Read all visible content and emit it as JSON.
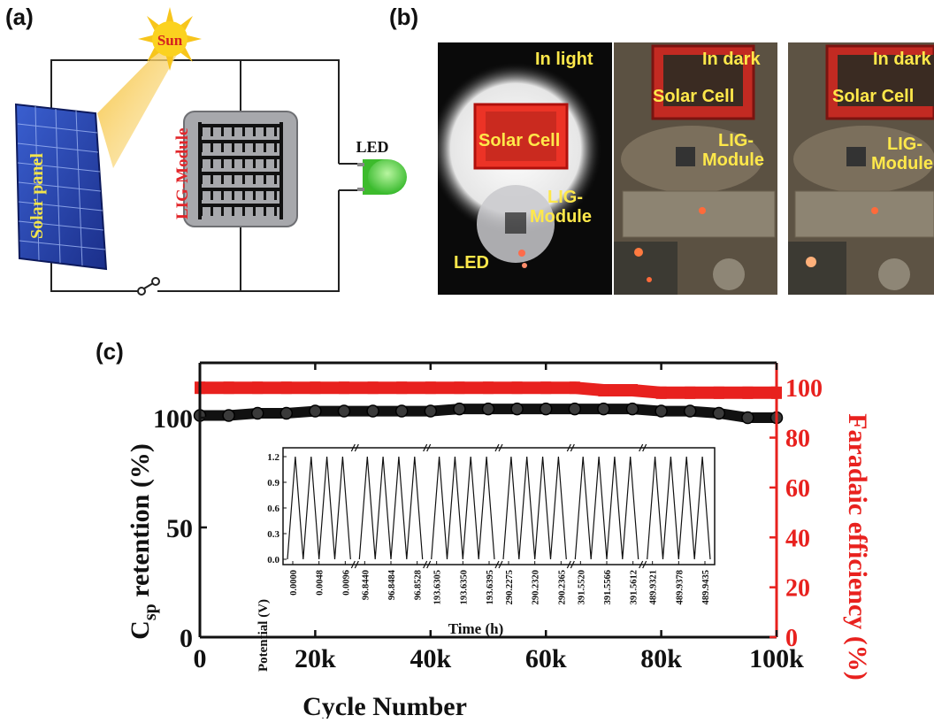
{
  "panel_labels": {
    "a": "(a)",
    "b": "(b)",
    "c": "(c)"
  },
  "schematic": {
    "sun": "Sun",
    "solar_panel": "Solar panel",
    "module": "LIG-Module",
    "led": "LED"
  },
  "photos": {
    "light": {
      "state": "In light",
      "solar": "Solar Cell",
      "module_l1": "LIG-",
      "module_l2": "Module",
      "led": "LED"
    },
    "dark1": {
      "state": "In dark",
      "solar": "Solar Cell",
      "module_l1": "LIG-",
      "module_l2": "Module"
    },
    "dark2": {
      "state": "In dark",
      "solar": "Solar Cell",
      "module_l1": "LIG-",
      "module_l2": "Module"
    }
  },
  "colors": {
    "retention": "#111111",
    "efficiency": "#e8211e",
    "schematic_red": "#e2262a",
    "led_green": "#4fd13b"
  },
  "chart_data": [
    {
      "type": "scatter",
      "xlabel": "Cycle Number",
      "ylabel_main": "C",
      "ylabel_sub": "sp",
      "ylabel_rest": " retention (%)",
      "y2label": "Faradaic efficiency (%)",
      "xlim": [
        0,
        100000
      ],
      "ylim": [
        0,
        125
      ],
      "y2lim": [
        0,
        110
      ],
      "xticks": [
        0,
        20000,
        40000,
        60000,
        80000,
        100000
      ],
      "xtick_labels": [
        "0",
        "20k",
        "40k",
        "60k",
        "80k",
        "100k"
      ],
      "yticks": [
        0,
        50,
        100
      ],
      "ytick_labels": [
        "0",
        "50",
        "100"
      ],
      "y2ticks": [
        0,
        20,
        40,
        60,
        80,
        100
      ],
      "y2tick_labels": [
        "0",
        "20",
        "40",
        "60",
        "80",
        "100"
      ],
      "series": [
        {
          "role": "retention",
          "axis": "left",
          "x": [
            0,
            5000,
            10000,
            15000,
            20000,
            25000,
            30000,
            35000,
            40000,
            45000,
            50000,
            55000,
            60000,
            65000,
            70000,
            75000,
            80000,
            85000,
            90000,
            95000,
            100000
          ],
          "y": [
            101,
            101,
            102,
            102,
            103,
            103,
            103,
            103,
            103,
            104,
            104,
            104,
            104,
            104,
            104,
            104,
            103,
            103,
            102,
            100,
            100
          ]
        },
        {
          "role": "efficiency",
          "axis": "right",
          "x": [
            0,
            5000,
            10000,
            15000,
            20000,
            25000,
            30000,
            35000,
            40000,
            45000,
            50000,
            55000,
            60000,
            65000,
            70000,
            75000,
            80000,
            85000,
            90000,
            95000,
            100000
          ],
          "y": [
            100,
            100,
            100,
            100,
            100,
            100,
            100,
            100,
            100,
            100,
            100,
            100,
            100,
            100,
            99,
            99,
            98,
            98,
            98,
            98,
            98
          ]
        }
      ]
    },
    {
      "type": "line",
      "xlabel": "Time (h)",
      "ylabel": "Potential (V)",
      "ylim": [
        0,
        1.2
      ],
      "yticks": [
        0.0,
        0.3,
        0.6,
        0.9,
        1.2
      ],
      "ytick_labels": [
        "0.0",
        "0.3",
        "0.6",
        "0.9",
        "1.2"
      ],
      "peak_v": 1.2,
      "cycles_per_segment": 4,
      "segments": [
        {
          "tick_labels": [
            "0.0000",
            "0.0048",
            "0.0096"
          ]
        },
        {
          "tick_labels": [
            "96.8440",
            "96.8484",
            "96.8528"
          ]
        },
        {
          "tick_labels": [
            "193.6305",
            "193.6350",
            "193.6395"
          ]
        },
        {
          "tick_labels": [
            "290.2275",
            "290.2320",
            "290.2365"
          ]
        },
        {
          "tick_labels": [
            "391.5520",
            "391.5566",
            "391.5612"
          ]
        },
        {
          "tick_labels": [
            "489.9321",
            "489.9378",
            "489.9435"
          ]
        }
      ]
    }
  ]
}
